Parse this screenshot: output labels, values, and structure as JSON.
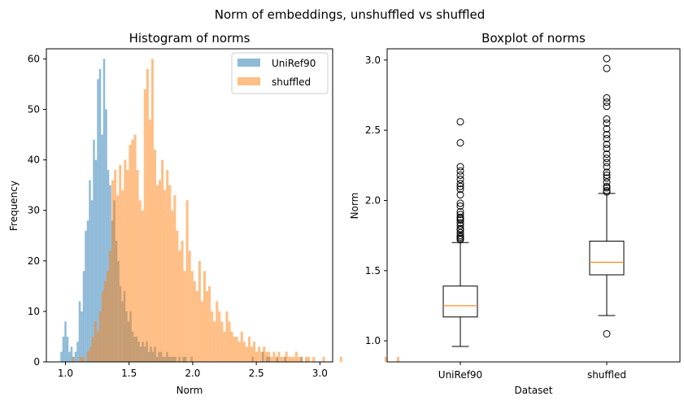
{
  "figure": {
    "suptitle": "Norm of embeddings, unshuffled vs shuffled"
  },
  "chart_data": [
    {
      "type": "histogram",
      "title": "Histogram of norms",
      "xlabel": "Norm",
      "ylabel": "Frequency",
      "xlim": [
        0.85,
        3.1
      ],
      "ylim": [
        0,
        62
      ],
      "xticks": [
        "1.0",
        "1.5",
        "2.0",
        "2.5",
        "3.0"
      ],
      "yticks": [
        "0",
        "10",
        "20",
        "30",
        "40",
        "50",
        "60"
      ],
      "legend_position": "top-right",
      "series": [
        {
          "name": "UniRef90",
          "color": "#1f77b4",
          "opacity": 0.5,
          "bin_start": 0.96,
          "bin_width": 0.016,
          "counts": [
            2,
            5,
            8,
            5,
            2,
            3,
            1,
            2,
            4,
            12,
            10,
            18,
            26,
            28,
            36,
            32,
            44,
            40,
            56,
            58,
            45,
            60,
            50,
            38,
            35,
            28,
            32,
            24,
            20,
            15,
            12,
            14,
            10,
            8,
            10,
            6,
            5,
            5,
            4,
            3,
            4,
            3,
            4,
            2,
            3,
            2,
            3,
            1,
            2,
            2,
            1,
            1,
            2,
            1,
            1,
            1,
            1,
            0,
            1,
            0,
            1,
            1,
            0,
            0,
            1,
            0,
            0,
            0,
            0,
            0,
            0,
            0,
            0,
            0,
            0,
            0,
            0,
            0,
            0,
            0,
            0,
            0,
            0,
            0,
            0,
            0,
            0,
            0,
            0,
            0,
            0,
            0,
            0,
            0,
            1,
            0,
            0,
            0,
            0,
            2,
            0,
            1,
            1,
            0,
            0,
            0,
            1,
            0,
            0,
            0,
            1,
            0,
            0,
            0,
            0,
            0,
            0,
            0,
            1
          ]
        },
        {
          "name": "shuffled",
          "color": "#ff7f0e",
          "opacity": 0.5,
          "bin_start": 1.05,
          "bin_width": 0.0195,
          "counts": [
            1,
            0,
            0,
            1,
            1,
            0,
            2,
            3,
            5,
            8,
            6,
            10,
            14,
            16,
            18,
            22,
            36,
            38,
            33,
            39,
            34,
            40,
            38,
            43,
            44,
            45,
            38,
            32,
            30,
            54,
            58,
            48,
            60,
            42,
            35,
            36,
            40,
            34,
            38,
            35,
            30,
            33,
            26,
            22,
            24,
            18,
            32,
            22,
            18,
            16,
            14,
            20,
            12,
            18,
            14,
            15,
            10,
            8,
            12,
            10,
            8,
            6,
            10,
            8,
            6,
            5,
            5,
            4,
            6,
            4,
            3,
            5,
            3,
            4,
            2,
            3,
            2,
            3,
            2,
            2,
            1,
            2,
            1,
            2,
            1,
            1,
            2,
            1,
            1,
            1,
            2,
            1,
            1,
            0,
            1,
            1,
            0,
            1,
            0,
            0,
            0,
            1,
            0,
            0,
            0,
            0,
            0,
            0,
            1,
            0,
            0,
            0,
            0,
            0,
            0,
            0,
            0,
            0,
            0,
            0,
            0,
            0,
            0,
            0,
            0,
            0,
            1,
            0,
            0,
            0,
            0,
            1
          ]
        }
      ]
    },
    {
      "type": "boxplot",
      "title": "Boxplot of norms",
      "xlabel": "Dataset",
      "ylabel": "Norm",
      "ylim": [
        0.85,
        3.08
      ],
      "yticks": [
        "1.0",
        "1.5",
        "2.0",
        "2.5",
        "3.0"
      ],
      "categories": [
        "UniRef90",
        "shuffled"
      ],
      "median_color": "#ff7f0e",
      "boxes": [
        {
          "name": "UniRef90",
          "whisker_low": 0.96,
          "q1": 1.17,
          "median": 1.25,
          "q3": 1.39,
          "whisker_high": 1.7,
          "outliers": [
            1.72,
            1.73,
            1.74,
            1.75,
            1.77,
            1.79,
            1.8,
            1.82,
            1.84,
            1.86,
            1.87,
            1.88,
            1.9,
            1.92,
            1.96,
            1.98,
            2.04,
            2.08,
            2.1,
            2.12,
            2.15,
            2.18,
            2.21,
            2.24,
            2.41,
            2.56
          ]
        },
        {
          "name": "shuffled",
          "whisker_low": 1.18,
          "q1": 1.47,
          "median": 1.56,
          "q3": 1.71,
          "whisker_high": 2.05,
          "outliers": [
            1.05,
            2.06,
            2.07,
            2.09,
            2.1,
            2.13,
            2.16,
            2.18,
            2.2,
            2.24,
            2.27,
            2.3,
            2.33,
            2.37,
            2.4,
            2.44,
            2.47,
            2.51,
            2.55,
            2.58,
            2.67,
            2.7,
            2.73,
            2.94,
            3.01
          ]
        }
      ]
    }
  ]
}
